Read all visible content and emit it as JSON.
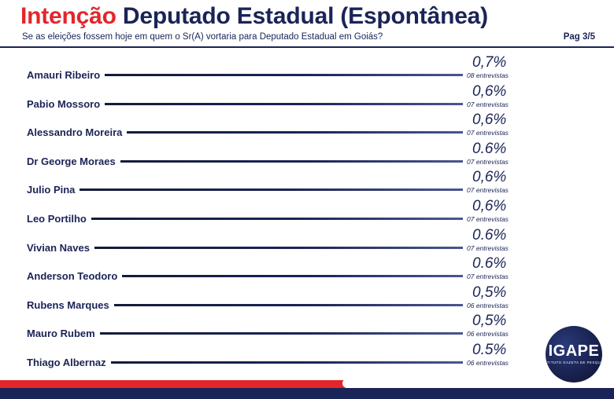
{
  "header": {
    "title_part1": "Intenção",
    "title_part2": "Deputado Estadual (Espontânea)",
    "subtitle": "Se as eleições fossem hoje em quem o Sr(A) vortaria para Deputado Estadual em Goiás?",
    "page": "Pag 3/5"
  },
  "chart_data": {
    "type": "bar",
    "categories": [
      "Amauri Ribeiro",
      "Pabio Mossoro",
      "Alessandro Moreira",
      "Dr George Moraes",
      "Julio Pina",
      "Leo Portilho",
      "Vivian Naves",
      "Anderson Teodoro",
      "Rubens Marques",
      "Mauro Rubem",
      "Thiago Albernaz"
    ],
    "values": [
      0.7,
      0.6,
      0.6,
      0.6,
      0.6,
      0.6,
      0.6,
      0.6,
      0.5,
      0.5,
      0.5
    ],
    "value_labels": [
      "0,7%",
      "0,6%",
      "0,6%",
      "0.6%",
      "0,6%",
      "0,6%",
      "0.6%",
      "0.6%",
      "0,5%",
      "0,5%",
      "0.5%"
    ],
    "count_labels": [
      "08 entrevistas",
      "07 entrevistas",
      "07 entrevistas",
      "07 entrevistas",
      "07 entrevistas",
      "07 entrevistas",
      "07 entrevistas",
      "07 entrevistas",
      "06 entrevistas",
      "06 entrevistas",
      "06 entrevistas"
    ]
  },
  "logo": {
    "text": "IGAPE",
    "subtext": "INSTITUTO GAZETA DE PESQUISA"
  },
  "colors": {
    "red": "#e3262b",
    "navy": "#1a2456"
  }
}
